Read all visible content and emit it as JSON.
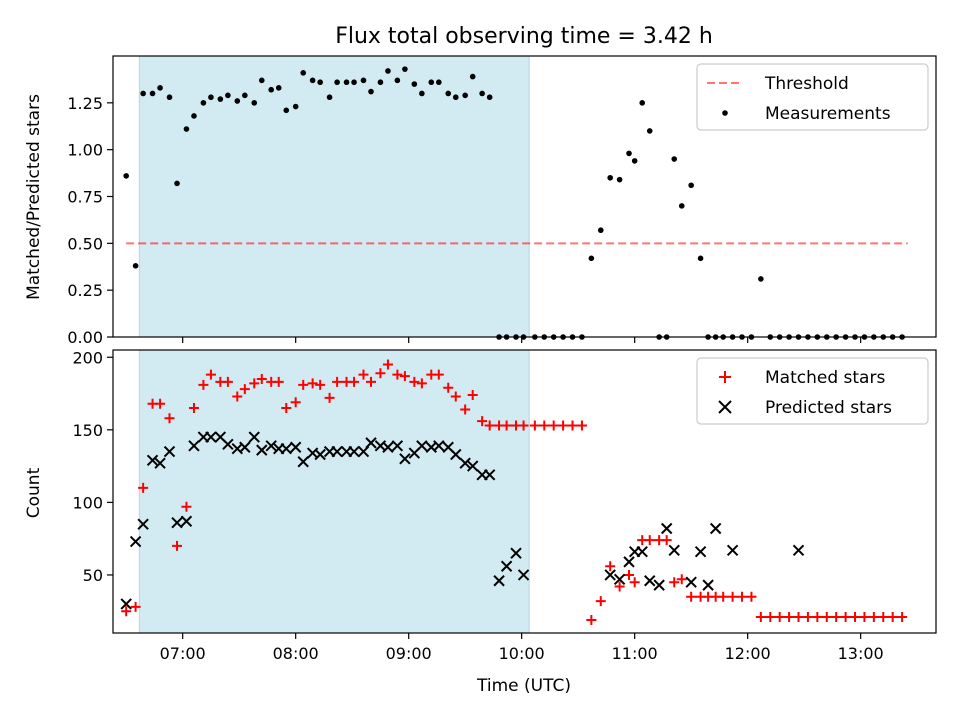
{
  "chart_data": [
    {
      "type": "scatter",
      "title": "Flux total observing time = 3.42 h",
      "xlabel": "",
      "ylabel": "Matched/Predicted stars",
      "xlim": [
        "06:23",
        "13:40"
      ],
      "ylim": [
        0,
        1.5
      ],
      "yticks": [
        0.0,
        0.25,
        0.5,
        0.75,
        1.0,
        1.25
      ],
      "ytick_labels": [
        "0.00",
        "0.25",
        "0.50",
        "0.75",
        "1.00",
        "1.25"
      ],
      "shaded_span": {
        "start": "06:37",
        "end": "10:04",
        "color": "#add8e6"
      },
      "threshold": {
        "name": "Threshold",
        "value": 0.5,
        "x_start": "06:30",
        "x_end": "13:25",
        "color": "#ff0000",
        "style": "dashed"
      },
      "legend": {
        "placement": "upper right",
        "entries": [
          "Threshold",
          "Measurements"
        ]
      },
      "series": [
        {
          "name": "Measurements",
          "marker": "dot",
          "color": "#000000",
          "x": [
            "06:30",
            "06:35",
            "06:39",
            "06:44",
            "06:48",
            "06:53",
            "06:57",
            "07:02",
            "07:06",
            "07:11",
            "07:15",
            "07:20",
            "07:24",
            "07:29",
            "07:33",
            "07:38",
            "07:42",
            "07:47",
            "07:51",
            "07:55",
            "08:00",
            "08:04",
            "08:09",
            "08:13",
            "08:18",
            "08:22",
            "08:27",
            "08:31",
            "08:36",
            "08:40",
            "08:45",
            "08:49",
            "08:54",
            "08:58",
            "09:03",
            "09:07",
            "09:12",
            "09:16",
            "09:21",
            "09:25",
            "09:30",
            "09:34",
            "09:39",
            "09:43",
            "09:48",
            "09:52",
            "09:57",
            "10:01",
            "10:07",
            "10:12",
            "10:17",
            "10:22",
            "10:27",
            "10:32",
            "10:37",
            "10:42",
            "10:47",
            "10:52",
            "10:57",
            "11:00",
            "11:04",
            "11:08",
            "11:13",
            "11:17",
            "11:21",
            "11:25",
            "11:30",
            "11:35",
            "11:39",
            "11:43",
            "11:47",
            "11:52",
            "11:57",
            "12:02",
            "12:07",
            "12:12",
            "12:17",
            "12:22",
            "12:27",
            "12:32",
            "12:37",
            "12:42",
            "12:47",
            "12:52",
            "12:57",
            "13:02",
            "13:07",
            "13:12",
            "13:17",
            "13:22"
          ],
          "y": [
            0.86,
            0.38,
            1.3,
            1.3,
            1.33,
            1.28,
            0.82,
            1.11,
            1.18,
            1.25,
            1.28,
            1.27,
            1.29,
            1.26,
            1.29,
            1.25,
            1.37,
            1.32,
            1.33,
            1.21,
            1.23,
            1.41,
            1.37,
            1.36,
            1.28,
            1.36,
            1.36,
            1.36,
            1.37,
            1.31,
            1.36,
            1.42,
            1.37,
            1.43,
            1.35,
            1.3,
            1.36,
            1.36,
            1.3,
            1.28,
            1.29,
            1.39,
            1.3,
            1.28,
            0,
            0,
            0,
            0,
            0,
            0,
            0,
            0,
            0,
            0,
            0.42,
            0.57,
            0.85,
            0.84,
            0.98,
            0.94,
            1.25,
            1.1,
            0,
            0,
            0.95,
            0.7,
            0.81,
            0.42,
            0,
            0,
            0,
            0,
            0,
            0,
            0.31,
            0,
            0,
            0,
            0,
            0,
            0,
            0,
            0,
            0,
            0,
            0,
            0,
            0,
            0,
            0
          ]
        }
      ]
    },
    {
      "type": "scatter",
      "title": "",
      "xlabel": "Time (UTC)",
      "ylabel": "Count",
      "xlim": [
        "06:23",
        "13:40"
      ],
      "ylim": [
        10,
        205
      ],
      "yticks": [
        50,
        100,
        150,
        200
      ],
      "ytick_labels": [
        "50",
        "100",
        "150",
        "200"
      ],
      "xticks": [
        "07:00",
        "08:00",
        "09:00",
        "10:00",
        "11:00",
        "12:00",
        "13:00"
      ],
      "xtick_labels": [
        "07:00",
        "08:00",
        "09:00",
        "10:00",
        "11:00",
        "12:00",
        "13:00"
      ],
      "shaded_span": {
        "start": "06:37",
        "end": "10:04",
        "color": "#add8e6"
      },
      "legend": {
        "placement": "upper right",
        "entries": [
          "Matched stars",
          "Predicted stars"
        ]
      },
      "series": [
        {
          "name": "Matched stars",
          "marker": "plus",
          "color": "#ff0000",
          "x": [
            "06:30",
            "06:35",
            "06:39",
            "06:44",
            "06:48",
            "06:53",
            "06:57",
            "07:02",
            "07:06",
            "07:11",
            "07:15",
            "07:20",
            "07:24",
            "07:29",
            "07:33",
            "07:38",
            "07:42",
            "07:47",
            "07:51",
            "07:55",
            "08:00",
            "08:04",
            "08:09",
            "08:13",
            "08:18",
            "08:22",
            "08:27",
            "08:31",
            "08:36",
            "08:40",
            "08:45",
            "08:49",
            "08:54",
            "08:58",
            "09:03",
            "09:07",
            "09:12",
            "09:16",
            "09:21",
            "09:25",
            "09:30",
            "09:34",
            "09:39",
            "09:43",
            "09:48",
            "09:52",
            "09:57",
            "10:01",
            "10:07",
            "10:12",
            "10:17",
            "10:22",
            "10:27",
            "10:32",
            "10:37",
            "10:42",
            "10:47",
            "10:52",
            "10:57",
            "11:00",
            "11:04",
            "11:08",
            "11:13",
            "11:17",
            "11:21",
            "11:25",
            "11:30",
            "11:35",
            "11:39",
            "11:43",
            "11:47",
            "11:52",
            "11:57",
            "12:02",
            "12:07",
            "12:12",
            "12:17",
            "12:22",
            "12:27",
            "12:32",
            "12:37",
            "12:42",
            "12:47",
            "12:52",
            "12:57",
            "13:02",
            "13:07",
            "13:12",
            "13:17",
            "13:22"
          ],
          "y": [
            25,
            28,
            110,
            168,
            168,
            158,
            70,
            97,
            165,
            181,
            188,
            183,
            183,
            173,
            178,
            182,
            185,
            183,
            183,
            165,
            169,
            181,
            182,
            181,
            172,
            183,
            183,
            183,
            188,
            183,
            189,
            195,
            188,
            187,
            183,
            182,
            188,
            188,
            179,
            173,
            164,
            174,
            156,
            153,
            153,
            153,
            153,
            153,
            153,
            153,
            153,
            153,
            153,
            153,
            19,
            32,
            56,
            42,
            50,
            45,
            74,
            74,
            74,
            74,
            45,
            47,
            35,
            35,
            35,
            35,
            35,
            35,
            35,
            35,
            21,
            21,
            21,
            21,
            21,
            21,
            21,
            21,
            21,
            21,
            21,
            21,
            21,
            21,
            21,
            21
          ]
        },
        {
          "name": "Predicted stars",
          "marker": "x",
          "color": "#000000",
          "x": [
            "06:30",
            "06:35",
            "06:39",
            "06:44",
            "06:48",
            "06:53",
            "06:57",
            "07:02",
            "07:06",
            "07:11",
            "07:15",
            "07:20",
            "07:24",
            "07:29",
            "07:33",
            "07:38",
            "07:42",
            "07:47",
            "07:51",
            "07:55",
            "08:00",
            "08:04",
            "08:09",
            "08:13",
            "08:18",
            "08:22",
            "08:27",
            "08:31",
            "08:36",
            "08:40",
            "08:45",
            "08:49",
            "08:54",
            "08:58",
            "09:03",
            "09:07",
            "09:12",
            "09:16",
            "09:21",
            "09:25",
            "09:30",
            "09:34",
            "09:39",
            "09:43",
            "09:48",
            "09:52",
            "09:57",
            "10:01",
            "10:47",
            "10:52",
            "10:57",
            "11:00",
            "11:04",
            "11:08",
            "11:13",
            "11:17",
            "11:21",
            "11:30",
            "11:35",
            "11:39",
            "11:43",
            "11:52",
            "12:27"
          ],
          "y": [
            30,
            73,
            85,
            129,
            127,
            135,
            86,
            87,
            139,
            145,
            145,
            145,
            140,
            137,
            138,
            145,
            136,
            139,
            137,
            137,
            138,
            128,
            134,
            133,
            135,
            135,
            135,
            135,
            135,
            141,
            139,
            138,
            139,
            130,
            134,
            139,
            138,
            139,
            138,
            133,
            127,
            125,
            119,
            119,
            46,
            56,
            65,
            50,
            50,
            47,
            59,
            66,
            66,
            46,
            43,
            82,
            67,
            45,
            66,
            43,
            82,
            67,
            67
          ]
        }
      ]
    }
  ]
}
